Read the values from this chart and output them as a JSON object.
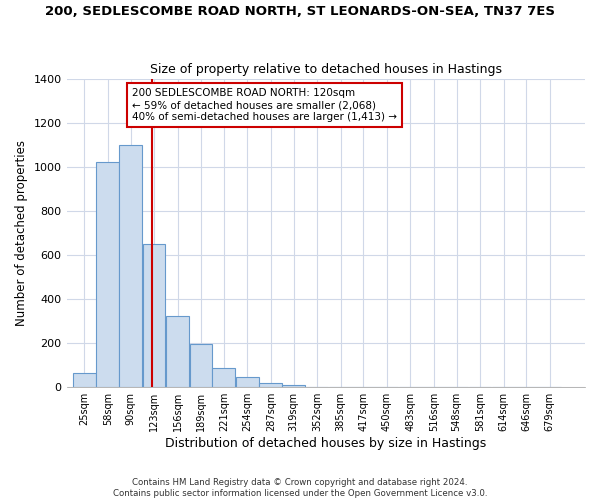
{
  "title": "200, SEDLESCOMBE ROAD NORTH, ST LEONARDS-ON-SEA, TN37 7ES",
  "subtitle": "Size of property relative to detached houses in Hastings",
  "xlabel": "Distribution of detached houses by size in Hastings",
  "ylabel": "Number of detached properties",
  "bar_labels": [
    "25sqm",
    "58sqm",
    "90sqm",
    "123sqm",
    "156sqm",
    "189sqm",
    "221sqm",
    "254sqm",
    "287sqm",
    "319sqm",
    "352sqm",
    "385sqm",
    "417sqm",
    "450sqm",
    "483sqm",
    "516sqm",
    "548sqm",
    "581sqm",
    "614sqm",
    "646sqm",
    "679sqm"
  ],
  "bar_values": [
    65,
    1020,
    1100,
    650,
    325,
    195,
    85,
    45,
    20,
    10,
    0,
    0,
    0,
    0,
    0,
    0,
    0,
    0,
    0,
    0,
    0
  ],
  "property_sqm": 120,
  "annotation_line1": "200 SEDLESCOMBE ROAD NORTH: 120sqm",
  "annotation_line2": "← 59% of detached houses are smaller (2,068)",
  "annotation_line3": "40% of semi-detached houses are larger (1,413) →",
  "bar_color": "#ccdcee",
  "bar_edge_color": "#6699cc",
  "vline_color": "#cc0000",
  "annotation_box_edge": "#cc0000",
  "annotation_box_face": "white",
  "plot_bg_color": "white",
  "fig_bg_color": "white",
  "grid_color": "#d0d8e8",
  "footer_text": "Contains HM Land Registry data © Crown copyright and database right 2024.\nContains public sector information licensed under the Open Government Licence v3.0.",
  "ylim": [
    0,
    1400
  ],
  "yticks": [
    0,
    200,
    400,
    600,
    800,
    1000,
    1200,
    1400
  ],
  "bin_width": 33
}
